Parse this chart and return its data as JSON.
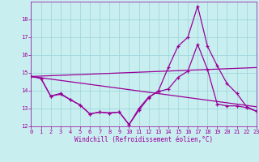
{
  "xlabel": "Windchill (Refroidissement éolien,°C)",
  "xlim": [
    0,
    23
  ],
  "ylim": [
    12,
    19
  ],
  "yticks": [
    12,
    13,
    14,
    15,
    16,
    17,
    18
  ],
  "xticks": [
    0,
    1,
    2,
    3,
    4,
    5,
    6,
    7,
    8,
    9,
    10,
    11,
    12,
    13,
    14,
    15,
    16,
    17,
    18,
    19,
    20,
    21,
    22,
    23
  ],
  "bg_color": "#c8eef0",
  "line_color": "#990099",
  "grid_color": "#a0d8dc",
  "lines": [
    {
      "x": [
        0,
        1,
        2,
        3,
        4,
        5,
        6,
        7,
        8,
        9,
        10,
        11,
        12,
        13,
        14,
        15,
        16,
        17,
        18,
        19,
        20,
        21,
        22,
        23
      ],
      "y": [
        14.8,
        14.7,
        13.7,
        13.8,
        13.5,
        13.2,
        12.7,
        12.8,
        12.75,
        12.8,
        12.1,
        12.9,
        13.6,
        14.0,
        15.3,
        16.5,
        17.0,
        18.75,
        16.5,
        15.4,
        14.4,
        13.85,
        13.1,
        12.85
      ]
    },
    {
      "x": [
        0,
        1,
        2,
        3,
        4,
        5,
        6,
        7,
        8,
        9,
        10,
        11,
        12,
        13,
        14,
        15,
        16,
        17,
        18,
        19,
        20,
        21,
        22,
        23
      ],
      "y": [
        14.8,
        14.7,
        13.7,
        13.85,
        13.5,
        13.2,
        12.7,
        12.8,
        12.75,
        12.8,
        12.1,
        13.0,
        13.65,
        13.95,
        14.1,
        14.75,
        15.1,
        16.6,
        15.2,
        13.25,
        13.15,
        13.15,
        13.05,
        12.85
      ]
    },
    {
      "x": [
        0,
        23
      ],
      "y": [
        14.8,
        15.3
      ]
    },
    {
      "x": [
        0,
        23
      ],
      "y": [
        14.8,
        13.1
      ]
    }
  ]
}
